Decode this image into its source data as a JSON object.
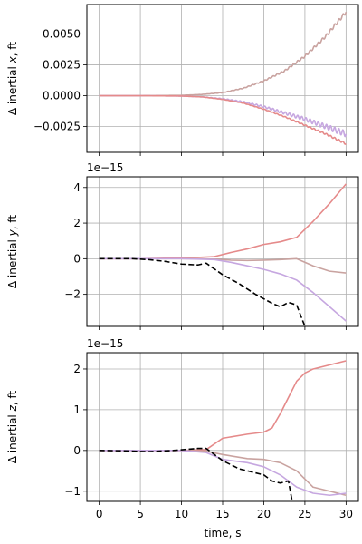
{
  "chart_data": [
    {
      "type": "line",
      "xlabel": "time, s",
      "ylabel": "Δ inertial x, ft",
      "offset_text": "",
      "xlim": [
        -1.5,
        31.5
      ],
      "ylim": [
        -0.0046,
        0.0074
      ],
      "xticks": [
        0,
        5,
        10,
        15,
        20,
        25,
        30
      ],
      "xtick_labels": [
        "0",
        "5",
        "10",
        "15",
        "20",
        "25",
        "30"
      ],
      "yticks": [
        -0.0025,
        0,
        0.0025,
        0.005
      ],
      "ytick_labels": [
        "−0.0025",
        "0.0000",
        "0.0025",
        "0.0050"
      ],
      "grid": true,
      "series": [
        {
          "color": "#c9a3a0",
          "style": "oscillating",
          "osc_amplitude": 0.00014,
          "x": [
            0,
            5,
            10,
            12.5,
            15,
            17.5,
            20,
            22.5,
            25,
            27.5,
            30
          ],
          "values": [
            0,
            0,
            3e-05,
            0.0001,
            0.00025,
            0.0006,
            0.0012,
            0.002,
            0.0032,
            0.0048,
            0.0068
          ]
        },
        {
          "color": "#c6a7e0",
          "style": "oscillating",
          "osc_amplitude": 0.00025,
          "x": [
            0,
            5,
            10,
            12.5,
            15,
            17.5,
            20,
            22.5,
            25,
            27.5,
            30
          ],
          "values": [
            0,
            0,
            -3e-05,
            -0.0001,
            -0.00025,
            -0.0005,
            -0.0009,
            -0.0014,
            -0.0019,
            -0.0025,
            -0.0031
          ]
        },
        {
          "color": "#e58a8a",
          "style": "oscillating",
          "osc_amplitude": 8e-05,
          "x": [
            0,
            5,
            10,
            12.5,
            15,
            17.5,
            20,
            22.5,
            25,
            27.5,
            30
          ],
          "values": [
            0,
            0,
            -3e-05,
            -0.0001,
            -0.0003,
            -0.0006,
            -0.0011,
            -0.0017,
            -0.0024,
            -0.0031,
            -0.0039
          ]
        }
      ]
    },
    {
      "type": "line",
      "xlabel": "time, s",
      "ylabel": "Δ inertial y, ft",
      "offset_text": "1e−15",
      "xlim": [
        -1.5,
        31.5
      ],
      "ylim": [
        -3.8,
        4.6
      ],
      "xticks": [
        0,
        5,
        10,
        15,
        20,
        25,
        30
      ],
      "xtick_labels": [
        "0",
        "5",
        "10",
        "15",
        "20",
        "25",
        "30"
      ],
      "yticks": [
        -2,
        0,
        2,
        4
      ],
      "ytick_labels": [
        "−2",
        "0",
        "2",
        "4"
      ],
      "grid": true,
      "series": [
        {
          "color": "#e58a8a",
          "style": "solid",
          "x": [
            0,
            5,
            10,
            12,
            14,
            16,
            18,
            20,
            22,
            24,
            26,
            28,
            30
          ],
          "values": [
            0,
            0,
            0.05,
            0.07,
            0.12,
            0.35,
            0.55,
            0.8,
            0.95,
            1.2,
            2.1,
            3.1,
            4.2
          ]
        },
        {
          "color": "#c9a3a0",
          "style": "solid",
          "x": [
            0,
            5,
            10,
            14,
            16,
            18,
            20,
            22,
            24,
            26,
            28,
            30
          ],
          "values": [
            0,
            0,
            0,
            -0.02,
            -0.08,
            -0.1,
            -0.08,
            -0.05,
            0.0,
            -0.4,
            -0.7,
            -0.8
          ]
        },
        {
          "color": "#c6a7e0",
          "style": "solid",
          "x": [
            0,
            5,
            10,
            14,
            16,
            18,
            20,
            22,
            24,
            26,
            28,
            30
          ],
          "values": [
            0,
            0,
            0,
            -0.05,
            -0.2,
            -0.4,
            -0.6,
            -0.85,
            -1.2,
            -1.9,
            -2.7,
            -3.5
          ]
        },
        {
          "color": "#000000",
          "style": "dashed",
          "x": [
            0,
            4,
            6,
            8,
            10,
            12,
            13,
            15,
            17,
            19,
            21,
            22,
            23,
            24,
            25
          ],
          "values": [
            0,
            0,
            -0.05,
            -0.15,
            -0.3,
            -0.35,
            -0.25,
            -0.9,
            -1.4,
            -2.0,
            -2.5,
            -2.7,
            -2.45,
            -2.6,
            -3.8
          ]
        }
      ]
    },
    {
      "type": "line",
      "xlabel": "time, s",
      "ylabel": "Δ inertial z, ft",
      "offset_text": "1e−15",
      "xlim": [
        -1.5,
        31.5
      ],
      "ylim": [
        -1.25,
        2.4
      ],
      "xticks": [
        0,
        5,
        10,
        15,
        20,
        25,
        30
      ],
      "xtick_labels": [
        "0",
        "5",
        "10",
        "15",
        "20",
        "25",
        "30"
      ],
      "yticks": [
        -1,
        0,
        1,
        2
      ],
      "ytick_labels": [
        "−1",
        "0",
        "1",
        "2"
      ],
      "grid": true,
      "series": [
        {
          "color": "#e58a8a",
          "style": "solid",
          "x": [
            0,
            5,
            10,
            13,
            15,
            18,
            20,
            21,
            22,
            23,
            24,
            25,
            26,
            28,
            30
          ],
          "values": [
            0,
            0,
            0,
            0.02,
            0.3,
            0.4,
            0.45,
            0.55,
            0.9,
            1.3,
            1.7,
            1.9,
            2.0,
            2.1,
            2.2
          ]
        },
        {
          "color": "#c9a3a0",
          "style": "solid",
          "x": [
            0,
            5,
            10,
            13,
            15,
            18,
            20,
            22,
            24,
            26,
            28,
            30
          ],
          "values": [
            0,
            0,
            0,
            -0.02,
            -0.1,
            -0.2,
            -0.22,
            -0.3,
            -0.5,
            -0.9,
            -1.0,
            -1.1
          ]
        },
        {
          "color": "#c6a7e0",
          "style": "solid",
          "x": [
            0,
            5,
            10,
            13,
            15,
            18,
            20,
            22,
            24,
            26,
            28,
            30
          ],
          "values": [
            0,
            0,
            0,
            -0.05,
            -0.22,
            -0.3,
            -0.4,
            -0.6,
            -0.9,
            -1.05,
            -1.1,
            -1.05
          ]
        },
        {
          "color": "#000000",
          "style": "dashed",
          "x": [
            0,
            3,
            6,
            9,
            12,
            13,
            14,
            15,
            16,
            17,
            18,
            20,
            21,
            22,
            23,
            23.5
          ],
          "values": [
            0,
            -0.01,
            -0.03,
            0.0,
            0.05,
            0.05,
            -0.1,
            -0.25,
            -0.35,
            -0.45,
            -0.5,
            -0.6,
            -0.75,
            -0.8,
            -0.75,
            -1.3
          ]
        }
      ]
    }
  ]
}
